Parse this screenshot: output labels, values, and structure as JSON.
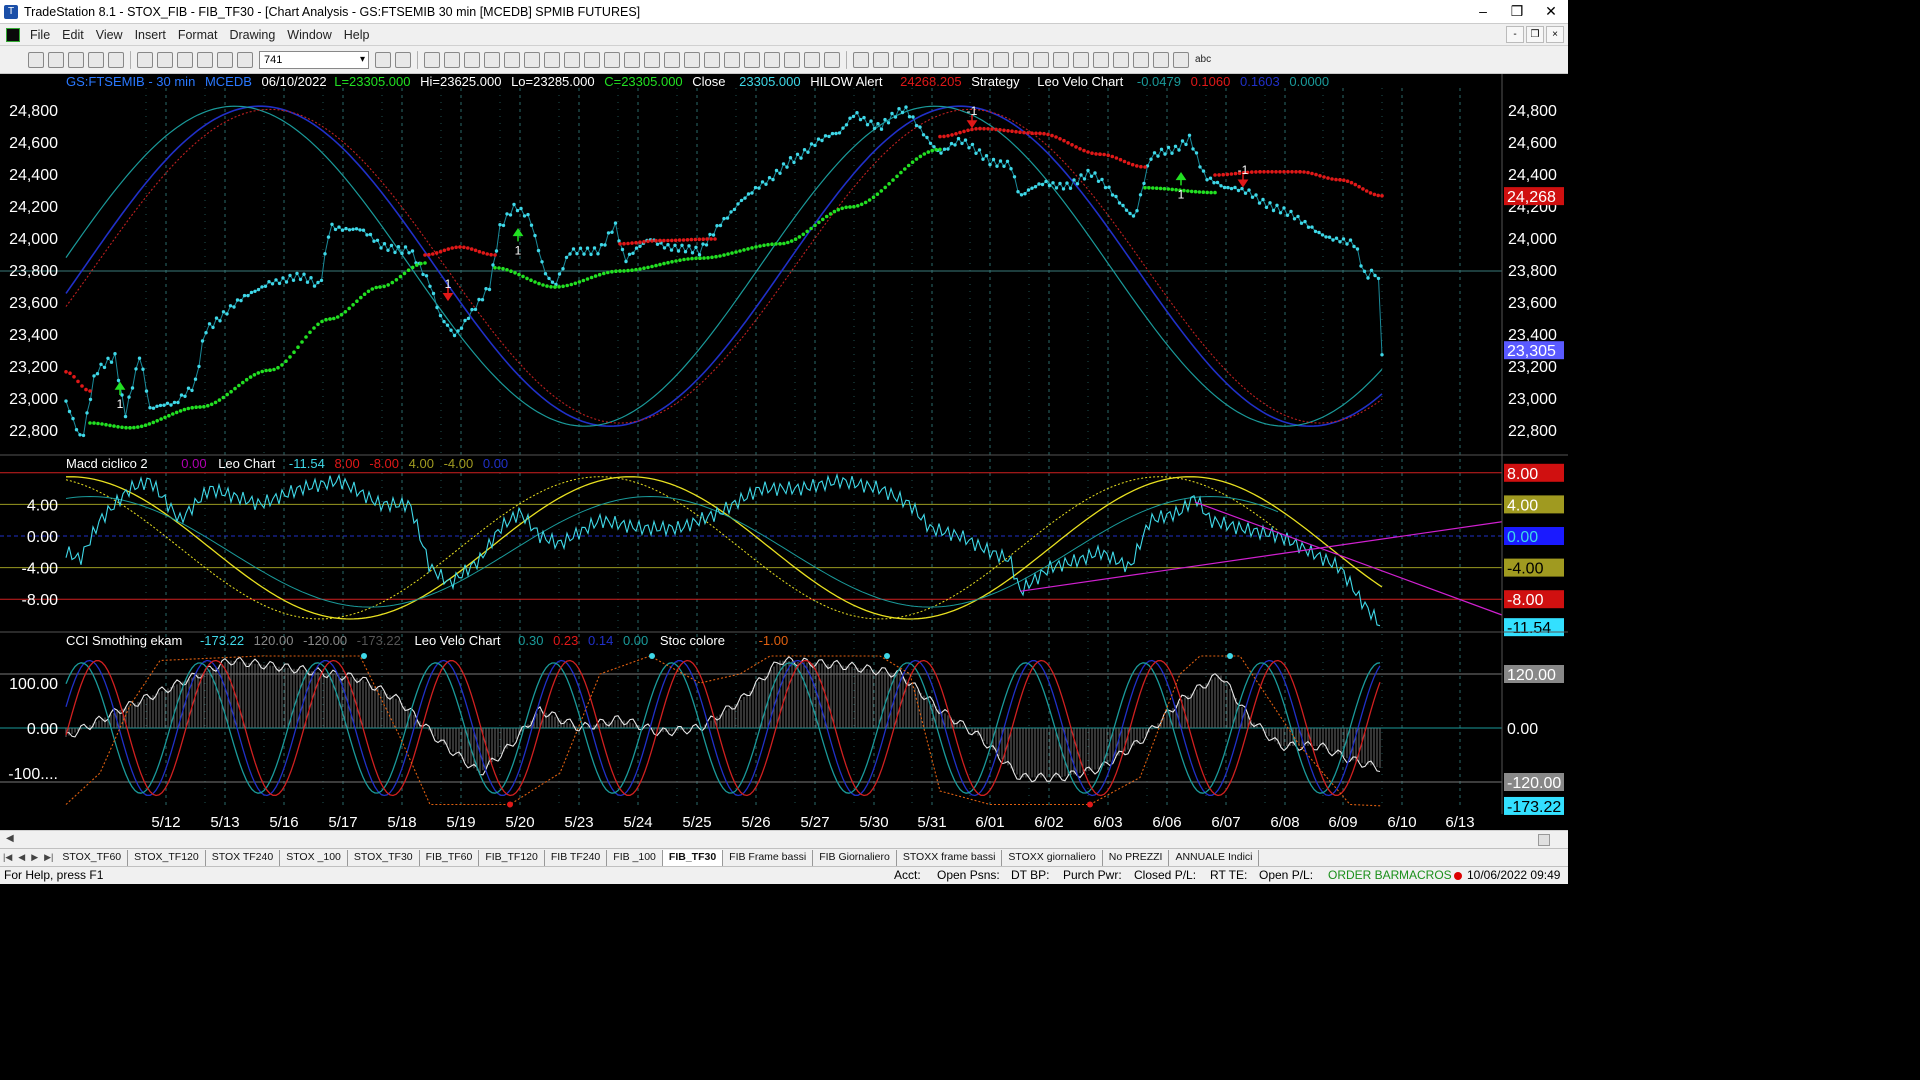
{
  "window": {
    "title": "TradeStation 8.1 - STOX_FIB - FIB_TF30 - [Chart Analysis - GS:FTSEMIB  30 min  [MCEDB] SPMIB FUTURES]",
    "minimize": "–",
    "maximize": "❒",
    "close": "✕"
  },
  "menu": [
    "File",
    "Edit",
    "View",
    "Insert",
    "Format",
    "Drawing",
    "Window",
    "Help"
  ],
  "mdi_buttons": [
    "-",
    "❒",
    "×"
  ],
  "toolbar": {
    "interval_value": "741",
    "abc_label": "abc"
  },
  "price_pane": {
    "symbol": "GS:FTSEMIB - 30 min",
    "session": "MCEDB",
    "date": "06/10/2022",
    "low_label": "L=23305.000",
    "hi": "Hi=23625.000",
    "lo": "Lo=23285.000",
    "close_c": "C=23305.000",
    "close_word": "Close",
    "close_val": "23305.000",
    "hilow": "HILOW Alert",
    "hilow_val": "24268.205",
    "strategy": "Strategy",
    "leo": "Leo Velo Chart",
    "v1": "-0.0479",
    "v2": "0.1060",
    "v3": "0.1603",
    "v4": "0.0000",
    "axis": [
      "24,800",
      "24,600",
      "24,400",
      "24,200",
      "24,000",
      "23,800",
      "23,600",
      "23,400",
      "23,200",
      "23,000",
      "22,800"
    ],
    "badge_hilow": "24,268",
    "badge_last": "23,305",
    "markers": [
      "1",
      "1",
      "1",
      "1",
      "-1",
      "-1"
    ]
  },
  "macd_pane": {
    "name": "Macd ciclico 2",
    "v0": "0.00",
    "leo": "Leo Chart",
    "v1": "-11.54",
    "v2": "8.00",
    "v3": "-8.00",
    "v4": "4.00",
    "v5": "-4.00",
    "v6": "0.00",
    "axis": [
      "4.00",
      "0.00",
      "-4.00",
      "-8.00"
    ],
    "badges": [
      "8.00",
      "4.00",
      "0.00",
      "-4.00",
      "-8.00",
      "-11.54"
    ]
  },
  "cci_pane": {
    "name": "CCI Smothing ekam",
    "v1": "-173.22",
    "v2": "120.00",
    "v3": "-120.00",
    "v4": "-173.22",
    "leo": "Leo Velo Chart",
    "v5": "0.30",
    "v6": "0.23",
    "v7": "0.14",
    "v8": "0.00",
    "stoc": "Stoc colore",
    "v9": "-1.00",
    "axis": [
      "100.00",
      "0.00",
      "-100...."
    ],
    "badges": [
      "120.00",
      "0.00",
      "-120.00",
      "-173.22"
    ]
  },
  "dates": [
    "5/12",
    "5/13",
    "5/16",
    "5/17",
    "5/18",
    "5/19",
    "5/20",
    "5/23",
    "5/24",
    "5/25",
    "5/26",
    "5/27",
    "5/30",
    "5/31",
    "6/01",
    "6/02",
    "6/03",
    "6/06",
    "6/07",
    "6/08",
    "6/09",
    "6/10",
    "6/13"
  ],
  "tabs": [
    "STOX_TF60",
    "STOX_TF120",
    "STOX TF240",
    "STOX _100",
    "STOX_TF30",
    "FIB_TF60",
    "FIB_TF120",
    "FIB TF240",
    "FIB _100",
    "FIB_TF30",
    "FIB Frame bassi",
    "FIB Giornaliero",
    "STOXX frame bassi",
    "STOXX giornaliero",
    "No PREZZI",
    "ANNUALE Indici"
  ],
  "active_tab": "FIB_TF30",
  "status": {
    "help": "For Help, press F1",
    "acct": "Acct:",
    "open_psns": "Open Psns:",
    "dt_bp": "DT BP:",
    "purch_pwr": "Purch Pwr:",
    "closed_pl": "Closed P/L:",
    "rt_te": "RT TE:",
    "open_pl": "Open P/L:",
    "order_bar": "ORDER BAR",
    "macros": "MACROS",
    "datetime": "10/06/2022 09:49"
  },
  "colors": {
    "price_dots": "#3fd8e8",
    "trail_up": "#22e022",
    "trail_down": "#e01818",
    "wave_blue": "#2030c8",
    "wave_teal": "#1a9a9a",
    "wave_red": "#c02020",
    "grid": "#2a6a6a",
    "axis_text": "#ffffff"
  }
}
